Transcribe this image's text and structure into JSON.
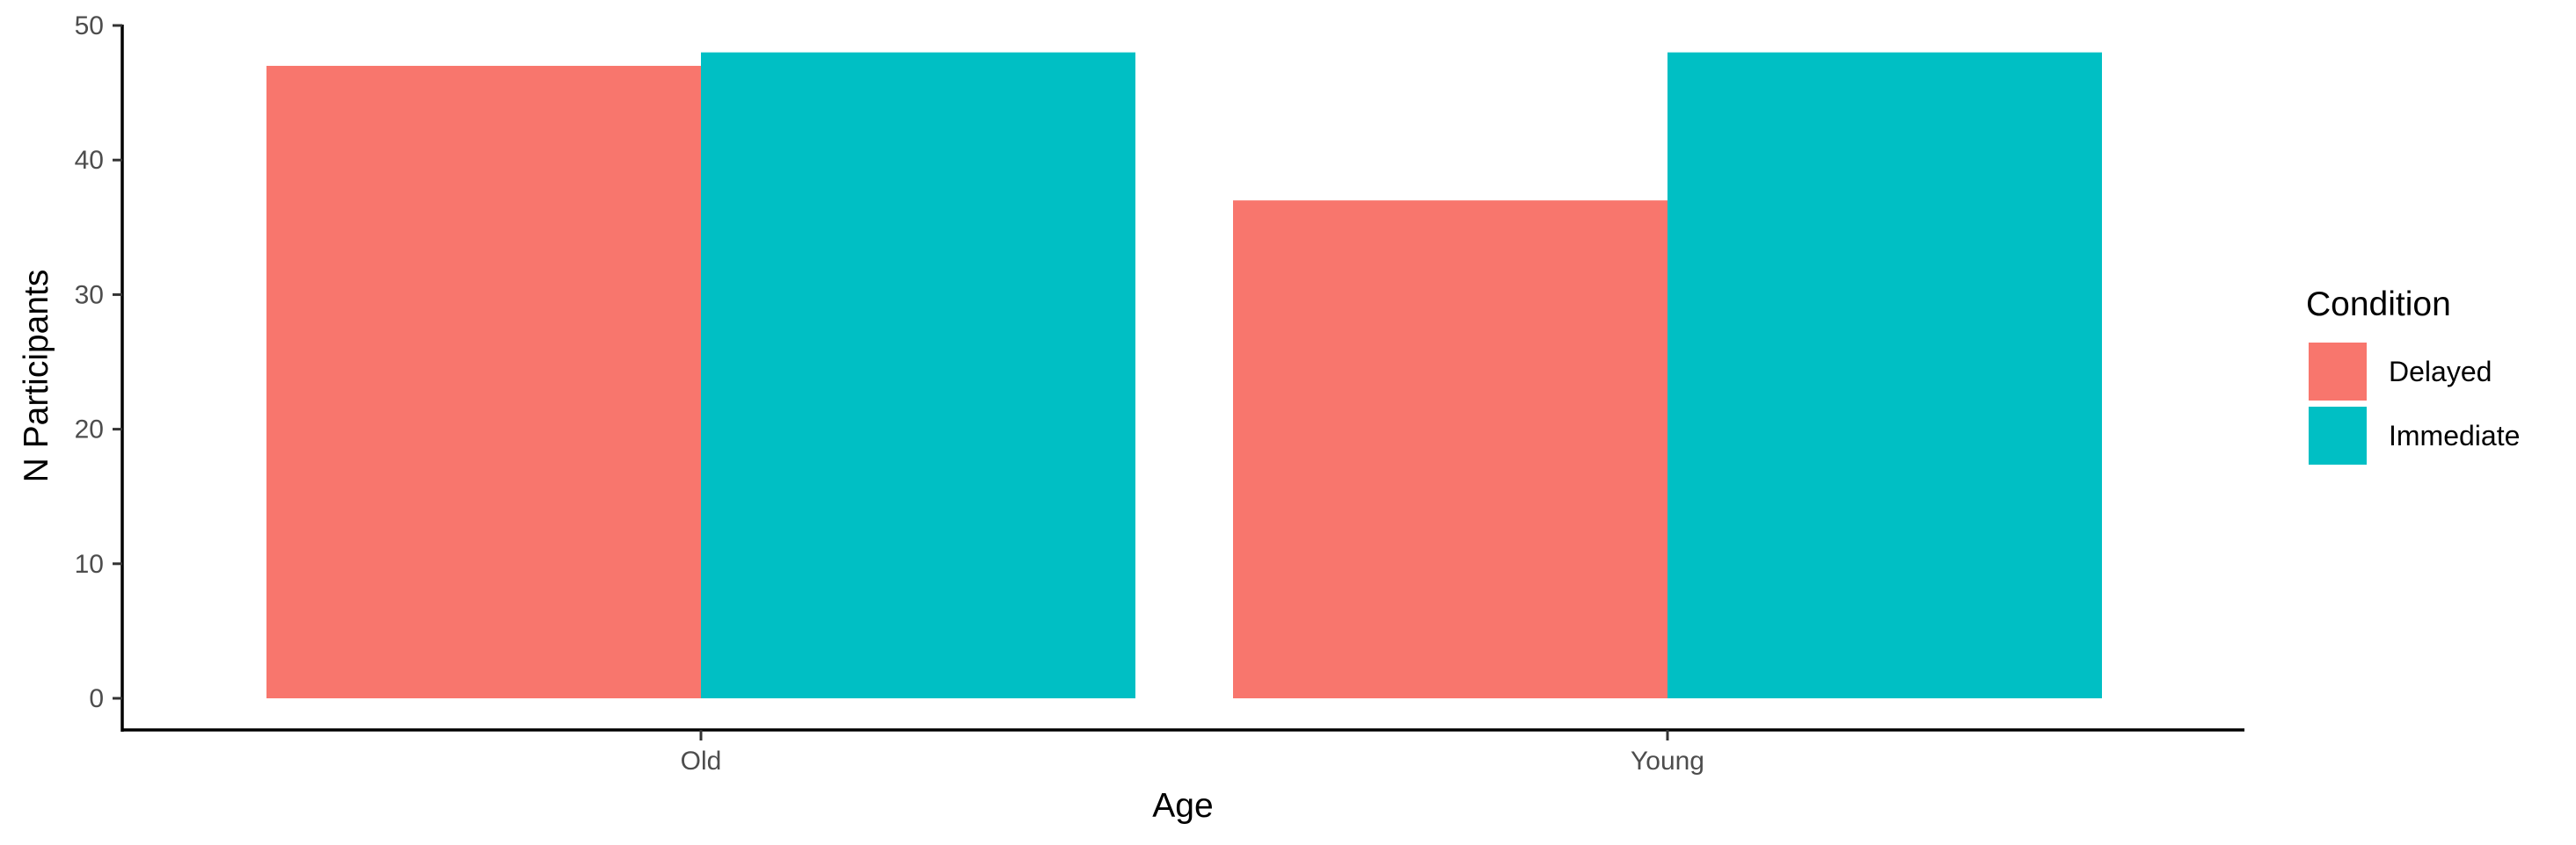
{
  "chart_data": {
    "type": "bar",
    "categories": [
      "Old",
      "Young"
    ],
    "series": [
      {
        "name": "Delayed",
        "values": [
          47,
          37
        ],
        "color": "#F8766D"
      },
      {
        "name": "Immediate",
        "values": [
          48,
          48
        ],
        "color": "#00BFC4"
      }
    ],
    "xlabel": "Age",
    "ylabel": "N Participants",
    "ylim": [
      0,
      50
    ],
    "yticks": [
      0,
      10,
      20,
      30,
      40,
      50
    ],
    "grid": false,
    "legend": {
      "title": "Condition",
      "position": "right"
    }
  }
}
